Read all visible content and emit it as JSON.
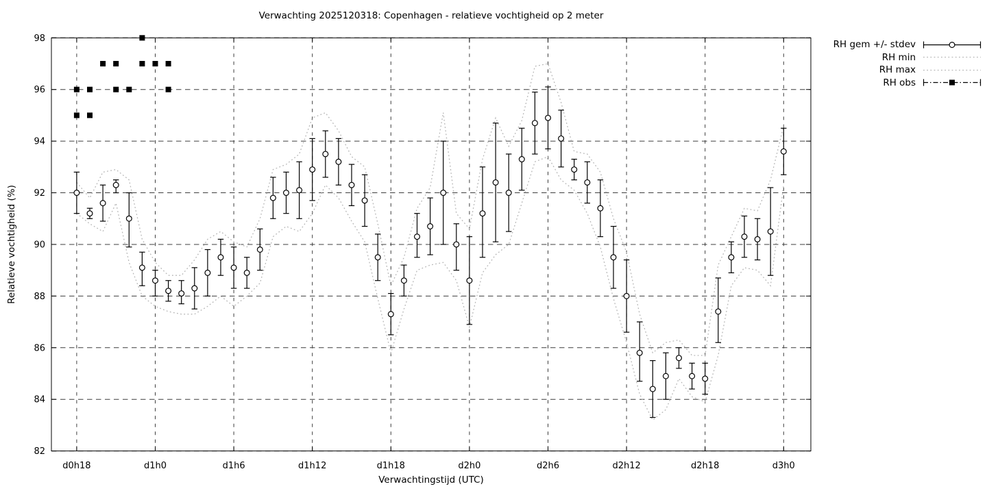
{
  "title": "Verwachting 2025120318: Copenhagen - relatieve vochtigheid op 2 meter",
  "colors": {
    "foreground": "#000000",
    "grid": "#3c3c3c",
    "minmax_dotted": "#b5b5b5",
    "background": "#ffffff",
    "point_fill": "#ffffff"
  },
  "chart_data": {
    "type": "line",
    "title": "Verwachting 2025120318: Copenhagen - relatieve vochtigheid op 2 meter",
    "xlabel": "Verwachtingstijd (UTC)",
    "ylabel": "Relatieve vochtigheid (%)",
    "ylim": [
      82,
      98
    ],
    "grid": true,
    "legend_position": "outside-top-right",
    "y_ticks": {
      "values": [
        82,
        84,
        86,
        88,
        90,
        92,
        94,
        96,
        98
      ],
      "labels": [
        "82",
        "84",
        "86",
        "88",
        "90",
        "92",
        "94",
        "96",
        "98"
      ]
    },
    "x_ticks": {
      "hours": [
        0,
        6,
        12,
        18,
        24,
        30,
        36,
        42,
        48,
        54
      ],
      "labels": [
        "d0h18",
        "d1h0",
        "d1h6",
        "d1h12",
        "d1h18",
        "d2h0",
        "d2h6",
        "d2h12",
        "d2h18",
        "d3h0"
      ]
    },
    "hours_total": 54,
    "legend": [
      {
        "label": "RH gem +/- stdev",
        "style": "errorbar-circle"
      },
      {
        "label": "RH min",
        "style": "dotted"
      },
      {
        "label": "RH max",
        "style": "dotted"
      },
      {
        "label": "RH obs",
        "style": "dashdot-square"
      }
    ],
    "series": {
      "mean": {
        "name": "RH gem +/- stdev",
        "values": [
          92.0,
          91.2,
          91.6,
          92.3,
          91.0,
          89.1,
          88.6,
          88.2,
          88.1,
          88.3,
          88.9,
          89.5,
          89.1,
          88.9,
          89.8,
          91.8,
          92.0,
          92.1,
          92.9,
          93.5,
          93.2,
          92.3,
          91.7,
          89.5,
          87.3,
          88.6,
          90.3,
          90.7,
          92.0,
          90.0,
          88.6,
          91.2,
          92.4,
          92.0,
          93.3,
          94.7,
          94.9,
          94.1,
          92.9,
          92.4,
          91.4,
          89.5,
          88.0,
          85.8,
          84.4,
          84.9,
          85.6,
          84.9,
          84.8,
          87.4,
          89.5,
          90.3,
          90.2,
          90.5,
          93.6
        ]
      },
      "err_lo": [
        91.2,
        91.0,
        90.9,
        92.0,
        89.9,
        88.4,
        88.0,
        87.8,
        87.7,
        87.5,
        88.0,
        88.8,
        88.3,
        88.3,
        89.0,
        91.0,
        91.2,
        91.0,
        91.7,
        92.6,
        92.3,
        91.5,
        90.7,
        88.6,
        86.5,
        88.0,
        89.5,
        89.6,
        90.0,
        89.0,
        86.9,
        89.5,
        90.1,
        90.5,
        92.1,
        93.5,
        93.7,
        93.0,
        92.5,
        91.6,
        90.3,
        88.3,
        86.6,
        84.7,
        83.3,
        84.0,
        85.2,
        84.4,
        84.2,
        86.2,
        88.9,
        89.5,
        89.4,
        88.8,
        92.7
      ],
      "err_hi": [
        92.8,
        91.4,
        92.3,
        92.5,
        92.0,
        89.7,
        89.0,
        88.6,
        88.6,
        89.1,
        89.8,
        90.2,
        89.9,
        89.5,
        90.6,
        92.6,
        92.8,
        93.2,
        94.1,
        94.4,
        94.1,
        93.1,
        92.7,
        90.4,
        88.1,
        89.2,
        91.2,
        91.8,
        94.0,
        90.8,
        90.3,
        93.0,
        94.7,
        93.5,
        94.5,
        95.9,
        96.1,
        95.2,
        93.3,
        93.2,
        92.5,
        90.7,
        89.4,
        87.0,
        85.5,
        85.8,
        86.0,
        85.4,
        85.4,
        88.7,
        90.1,
        91.1,
        91.0,
        92.2,
        94.5
      ],
      "min": {
        "name": "RH min",
        "values": [
          91.2,
          90.8,
          90.5,
          91.6,
          89.3,
          88.0,
          87.6,
          87.4,
          87.3,
          87.3,
          87.6,
          88.0,
          87.6,
          88.0,
          88.5,
          90.3,
          90.7,
          90.5,
          91.2,
          92.3,
          91.8,
          90.9,
          90.1,
          87.9,
          85.8,
          87.5,
          89.0,
          89.2,
          89.3,
          88.6,
          86.8,
          88.9,
          89.6,
          90.0,
          91.6,
          93.2,
          93.4,
          92.5,
          92.1,
          91.2,
          89.9,
          87.9,
          86.2,
          84.2,
          83.2,
          83.6,
          84.8,
          84.1,
          83.9,
          85.7,
          88.4,
          89.1,
          89.0,
          88.4,
          92.3
        ]
      },
      "max": {
        "name": "RH max",
        "values": [
          92.4,
          91.8,
          92.8,
          92.9,
          92.5,
          90.2,
          89.3,
          88.8,
          88.8,
          89.4,
          90.2,
          90.5,
          90.1,
          89.9,
          91.0,
          92.9,
          93.1,
          93.5,
          94.9,
          95.1,
          94.4,
          93.4,
          93.0,
          90.8,
          88.4,
          89.5,
          91.4,
          92.2,
          95.1,
          91.2,
          90.6,
          93.3,
          94.9,
          93.8,
          94.8,
          96.9,
          97.0,
          95.5,
          93.6,
          93.5,
          92.8,
          91.0,
          89.7,
          87.3,
          85.8,
          86.2,
          86.3,
          85.7,
          85.7,
          89.2,
          90.3,
          91.4,
          91.3,
          92.5,
          94.6
        ]
      },
      "obs": {
        "name": "RH obs",
        "points": [
          {
            "h": 0,
            "v": 95
          },
          {
            "h": 0,
            "v": 96
          },
          {
            "h": 1,
            "v": 95
          },
          {
            "h": 1,
            "v": 96
          },
          {
            "h": 2,
            "v": 97
          },
          {
            "h": 3,
            "v": 96
          },
          {
            "h": 3,
            "v": 97
          },
          {
            "h": 4,
            "v": 96
          },
          {
            "h": 5,
            "v": 97
          },
          {
            "h": 5,
            "v": 98
          },
          {
            "h": 6,
            "v": 97
          },
          {
            "h": 7,
            "v": 96
          },
          {
            "h": 7,
            "v": 97
          }
        ]
      }
    }
  }
}
